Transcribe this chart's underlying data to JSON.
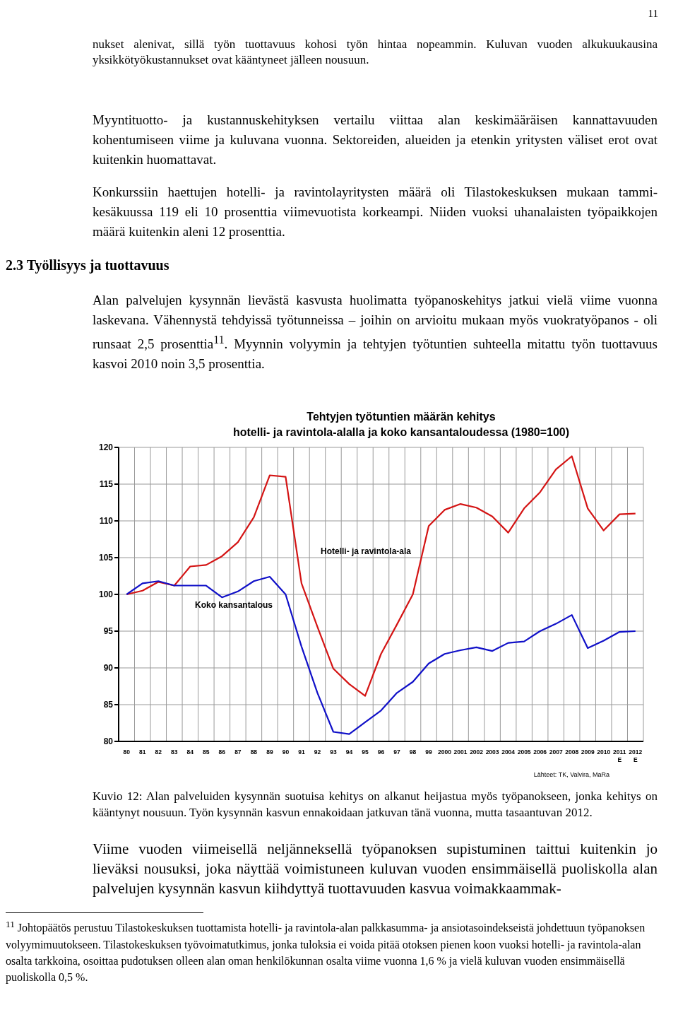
{
  "chart_data": {
    "type": "line",
    "title": "Tehtyjen työtuntien määrän kehitys",
    "subtitle": "hotelli- ja ravintola-alalla ja koko kansantaloudessa (1980=100)",
    "categories": [
      "80",
      "81",
      "82",
      "83",
      "84",
      "85",
      "86",
      "87",
      "88",
      "89",
      "90",
      "91",
      "92",
      "93",
      "94",
      "95",
      "96",
      "97",
      "98",
      "99",
      "2000",
      "2001",
      "2002",
      "2003",
      "2004",
      "2005",
      "2006",
      "2007",
      "2008",
      "2009",
      "2010",
      "2011\nE",
      "2012\nE"
    ],
    "series": [
      {
        "name": "Hotelli- ja ravintola-ala",
        "color": "#d41414",
        "values": [
          100,
          100.5,
          101.7,
          101.2,
          103.8,
          104.0,
          105.2,
          107.1,
          110.5,
          116.2,
          116.0,
          101.5,
          95.6,
          89.9,
          87.8,
          86.2,
          91.9,
          95.9,
          100.0,
          109.3,
          111.5,
          112.3,
          111.8,
          110.6,
          108.4,
          111.7,
          113.9,
          117.0,
          118.8,
          111.7,
          108.7,
          110.9,
          111.0
        ]
      },
      {
        "name": "Koko kansantalous",
        "color": "#1010c8",
        "values": [
          100,
          101.5,
          101.8,
          101.2,
          101.2,
          101.2,
          99.6,
          100.4,
          101.8,
          102.4,
          100.0,
          92.9,
          86.6,
          81.3,
          81.0,
          82.6,
          84.2,
          86.6,
          88.1,
          90.6,
          91.9,
          92.4,
          92.8,
          92.3,
          93.4,
          93.6,
          95.0,
          96.0,
          97.2,
          92.7,
          93.7,
          94.9,
          95.0
        ]
      }
    ],
    "ylim": [
      80,
      120
    ],
    "yticks": [
      80,
      85,
      90,
      95,
      100,
      105,
      110,
      115,
      120
    ],
    "grid": true,
    "legend": false,
    "marker": "none",
    "line_style": "solid",
    "annotations": [
      "11",
      "nukset alenivat, sillä työn tuottavuus kohosi työn hintaa nopeammin. Kuluvan vuoden alkukuukausina yksikkötyökustannukset ovat kääntyneet jälleen nousuun.",
      "Myyntituotto- ja kustannuskehityksen vertailu viittaa alan keskimääräisen kannattavuuden kohentumiseen viime ja kuluvana vuonna. Sektoreiden, alueiden ja etenkin yritysten väliset erot ovat kuitenkin huomattavat.",
      "Konkurssiin haettujen hotelli- ja ravintolayritysten määrä oli Tilastokeskuksen mukaan tammi-kesäkuussa 119 eli 10 prosenttia viimevuotista korkeampi. Niiden vuoksi uhanalaisten työpaikkojen määrä kuitenkin aleni 12 prosenttia.",
      "2.3 Työllisyys ja tuottavuus",
      "Alan palvelujen kysynnän lievästä kasvusta huolimatta työpanoskehitys jatkui vielä viime vuonna laskevana. Vähennystä tehdyissä työtunneissa – joihin on arvioitu mukaan myös vuokratyöpanos - oli runsaat 2,5 prosenttia$^{11}$. Myynnin volyymin ja tehtyjen työtuntien suhteella mitattu työn tuottavuus kasvoi 2010 noin 3,5 prosenttia.",
      "Lähteet: TK, Valvira, MaRa",
      "Kuvio 12: Alan palveluiden kysynnän suotuisa kehitys on alkanut heijastua myös työpanokseen, jonka kehitys on kääntynyt nousuun. Työn kysynnän kasvun ennakoidaan jatkuvan tänä vuonna, mutta tasaantuvan 2012.",
      "Viime vuoden viimeisellä neljänneksellä työpanoksen supistuminen taittui kuitenkin jo lieväksi nousuksi, joka näyttää voimistuneen kuluvan vuoden ensimmäisellä puoliskolla alan palvelujen kysynnän kasvun kiihdyttyä tuottavuuden kasvua voimakkaammak-",
      "$^{11}$ Johtopäätös perustuu Tilastokeskuksen tuottamista hotelli- ja ravintola-alan palkkasumma- ja ansiotasoindekseistä johdettuun työpanoksen volyymimuutokseen. Tilastokeskuksen työvoimatutkimus, jonka tuloksia ei voida pitää otoksen pienen koon vuoksi hotelli- ja ravintola-alan osalta tarkkoina, osoittaa pudotuksen olleen alan oman henkilökunnan osalta viime vuonna 1,6 % ja vielä kuluvan vuoden ensimmäisellä puoliskolla 0,5 %."
    ]
  }
}
